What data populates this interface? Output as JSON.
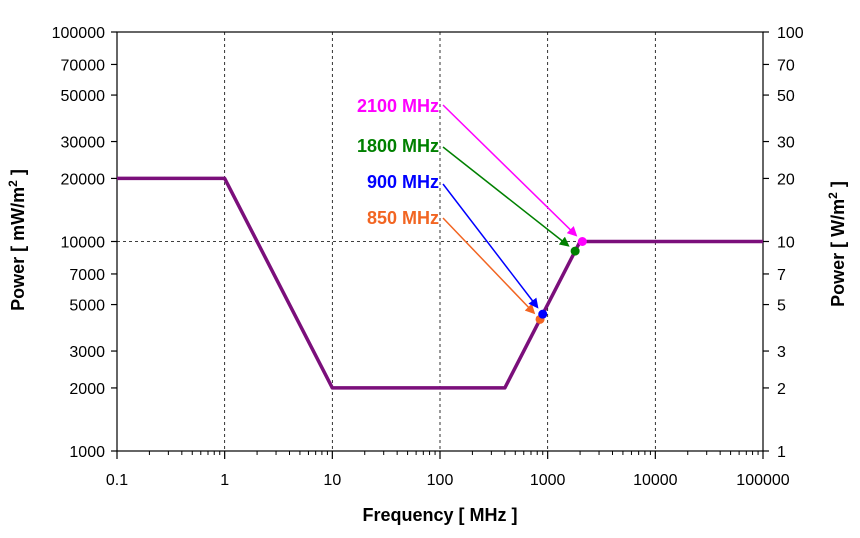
{
  "chart_data": {
    "type": "line",
    "xscale": "log",
    "yscale": "log",
    "xlim": [
      0.1,
      100000
    ],
    "ylim": [
      1000,
      100000
    ],
    "y2lim": [
      1,
      100
    ],
    "grid": true,
    "xlabel": "Frequency [ MHz ]",
    "ylabel_left": "Power [ mW/m",
    "ylabel_left_sup": "2",
    "ylabel_left_end": " ]",
    "ylabel_right": "Power [ W/m",
    "ylabel_right_sup": "2",
    "ylabel_right_end": " ]",
    "x_ticks": [
      "0.1",
      "1",
      "10",
      "100",
      "1000",
      "10000",
      "100000"
    ],
    "x_tick_values": [
      0.1,
      1,
      10,
      100,
      1000,
      10000,
      100000
    ],
    "y_ticks": [
      "1000",
      "2000",
      "3000",
      "5000",
      "7000",
      "10000",
      "20000",
      "30000",
      "50000",
      "70000",
      "100000"
    ],
    "y_tick_values": [
      1000,
      2000,
      3000,
      5000,
      7000,
      10000,
      20000,
      30000,
      50000,
      70000,
      100000
    ],
    "y2_ticks": [
      "1",
      "2",
      "3",
      "5",
      "7",
      "10",
      "20",
      "30",
      "50",
      "70",
      "100"
    ],
    "y2_tick_values": [
      1,
      2,
      3,
      5,
      7,
      10,
      20,
      30,
      50,
      70,
      100
    ],
    "gridline_x": [
      1,
      10,
      100,
      1000,
      10000
    ],
    "gridline_y": [
      10000
    ],
    "series": [
      {
        "color": "#7b0f7b",
        "x": [
          0.1,
          1,
          10,
          400,
          2000,
          100000
        ],
        "y": [
          20000,
          20000,
          2000,
          2000,
          10000,
          10000
        ]
      }
    ],
    "points": [
      {
        "label": "850 MHz",
        "x": 850,
        "y": 4250,
        "color": "#f26522"
      },
      {
        "label": "900 MHz",
        "x": 900,
        "y": 4500,
        "color": "#0000ff"
      },
      {
        "label": "1800 MHz",
        "x": 1800,
        "y": 9000,
        "color": "#008000"
      },
      {
        "label": "2100 MHz",
        "x": 2100,
        "y": 10000,
        "color": "#ff00ff"
      }
    ]
  }
}
